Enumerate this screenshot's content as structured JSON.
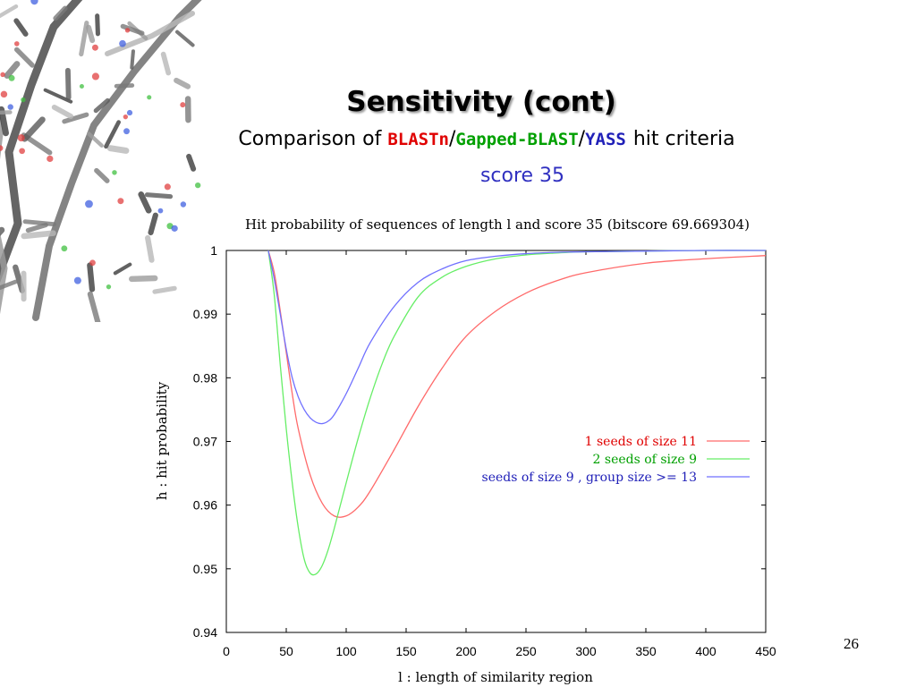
{
  "slide": {
    "title": "Sensitivity (cont)",
    "subtitle_prefix": "Comparison of ",
    "method_1": "BLASTn",
    "separator_1": "/",
    "method_2": "Gapped-BLAST",
    "separator_2": "/",
    "method_3": "YASS",
    "subtitle_suffix": "hit criteria",
    "score_note": "score 35",
    "page_number": "26"
  },
  "colors": {
    "method_1": "#e00000",
    "method_2": "#00a000",
    "method_3": "#2020b8",
    "score_note": "#3030c0"
  },
  "decoration": {
    "top_left_image": "dna-molecule-stick-model"
  },
  "chart_data": {
    "type": "line",
    "title": "Hit probability of sequences of length l and score 35 (bitscore 69.669304)",
    "xlabel": "l : length of similarity region",
    "ylabel": "h : hit probability",
    "xlim": [
      0,
      450
    ],
    "ylim": [
      0.94,
      1
    ],
    "x_ticks": [
      0,
      50,
      100,
      150,
      200,
      250,
      300,
      350,
      400,
      450
    ],
    "x_tick_labels": [
      "0",
      "50",
      "100",
      "150",
      "200",
      "250",
      "300",
      "350",
      "400",
      "450"
    ],
    "y_ticks": [
      0.94,
      0.95,
      0.96,
      0.97,
      0.98,
      0.99,
      1
    ],
    "y_tick_labels": [
      "0.94",
      "0.95",
      "0.96",
      "0.97",
      "0.98",
      "0.99",
      "1"
    ],
    "grid": false,
    "legend_position": "right-middle",
    "series": [
      {
        "name": "1 seeds of size 11",
        "color": "#ff6a6a",
        "x": [
          35,
          40,
          45,
          50,
          55,
          60,
          70,
          80,
          90,
          100,
          110,
          120,
          140,
          160,
          180,
          200,
          225,
          250,
          275,
          300,
          350,
          400,
          450
        ],
        "y": [
          1.0,
          0.9965,
          0.9905,
          0.984,
          0.9775,
          0.972,
          0.9647,
          0.9603,
          0.9583,
          0.9583,
          0.9597,
          0.9622,
          0.9687,
          0.9755,
          0.9815,
          0.9865,
          0.9905,
          0.9933,
          0.9952,
          0.9965,
          0.998,
          0.9987,
          0.9992
        ]
      },
      {
        "name": "2 seeds of size 9",
        "color": "#66ee66",
        "x": [
          35,
          40,
          45,
          50,
          55,
          60,
          65,
          70,
          75,
          80,
          85,
          90,
          100,
          110,
          120,
          130,
          140,
          160,
          180,
          200,
          225,
          250,
          275,
          300,
          350,
          400,
          450
        ],
        "y": [
          1.0,
          0.993,
          0.982,
          0.972,
          0.9635,
          0.9565,
          0.9515,
          0.9493,
          0.9492,
          0.9505,
          0.953,
          0.9563,
          0.9635,
          0.9705,
          0.9768,
          0.9822,
          0.9865,
          0.9927,
          0.9958,
          0.9975,
          0.9987,
          0.9993,
          0.9996,
          0.9998,
          0.9999,
          1.0,
          1.0
        ]
      },
      {
        "name": "seeds of size 9 , group size >= 13",
        "color": "#7070ff",
        "x": [
          35,
          40,
          45,
          50,
          55,
          60,
          65,
          70,
          75,
          80,
          85,
          90,
          100,
          110,
          120,
          140,
          160,
          180,
          200,
          225,
          250,
          275,
          300,
          350,
          400,
          450
        ],
        "y": [
          1.0,
          0.9955,
          0.99,
          0.9845,
          0.98,
          0.977,
          0.975,
          0.9737,
          0.973,
          0.9728,
          0.9732,
          0.9742,
          0.9775,
          0.9815,
          0.9855,
          0.9912,
          0.995,
          0.9971,
          0.9984,
          0.9991,
          0.9995,
          0.9997,
          0.9998,
          0.9999,
          1.0,
          1.0
        ]
      }
    ]
  }
}
